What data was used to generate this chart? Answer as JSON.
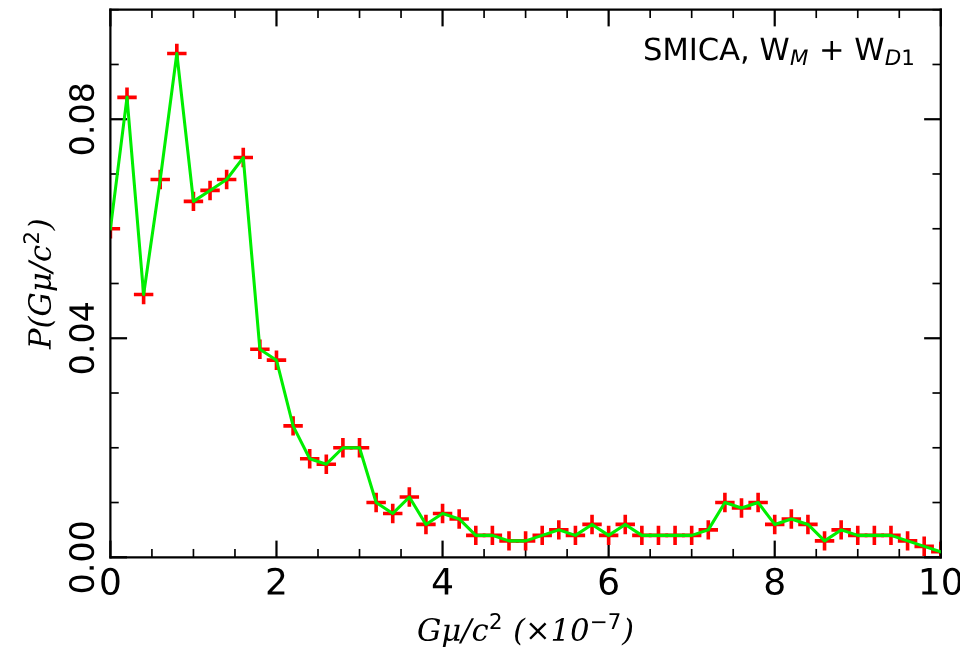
{
  "chart_data": {
    "type": "line",
    "xlabel": "Gμ/c$^{2}$ (×10$^{−7}$)",
    "ylabel": "P(Gμ/c$^{2}$)",
    "annotations": [
      "SMICA, W$_{M}$ + W$_{D1}$"
    ],
    "x": [
      0,
      0.2,
      0.4,
      0.6,
      0.8,
      1.0,
      1.2,
      1.4,
      1.6,
      1.8,
      2.0,
      2.2,
      2.4,
      2.6,
      2.8,
      3.0,
      3.2,
      3.4,
      3.6,
      3.8,
      4.0,
      4.2,
      4.4,
      4.6,
      4.8,
      5.0,
      5.2,
      5.4,
      5.6,
      5.8,
      6.0,
      6.2,
      6.4,
      6.6,
      6.8,
      7.0,
      7.2,
      7.4,
      7.6,
      7.8,
      8.0,
      8.2,
      8.4,
      8.6,
      8.8,
      9.0,
      9.2,
      9.4,
      9.6,
      9.8,
      10.0
    ],
    "series": [
      {
        "color": "#00ee00",
        "marker": "none",
        "values": [
          0.06,
          0.084,
          0.048,
          0.069,
          0.092,
          0.065,
          0.067,
          0.069,
          0.073,
          0.038,
          0.036,
          0.024,
          0.018,
          0.017,
          0.02,
          0.02,
          0.01,
          0.008,
          0.011,
          0.006,
          0.008,
          0.007,
          0.004,
          0.004,
          0.003,
          0.003,
          0.004,
          0.005,
          0.004,
          0.006,
          0.004,
          0.006,
          0.004,
          0.004,
          0.004,
          0.004,
          0.005,
          0.01,
          0.009,
          0.01,
          0.006,
          0.007,
          0.006,
          0.003,
          0.005,
          0.004,
          0.004,
          0.004,
          0.003,
          0.002,
          0.001
        ]
      },
      {
        "type": "scatter",
        "color": "#ff0000",
        "marker": "cross",
        "values": [
          0.06,
          0.084,
          0.048,
          0.069,
          0.092,
          0.065,
          0.067,
          0.069,
          0.073,
          0.038,
          0.036,
          0.024,
          0.018,
          0.017,
          0.02,
          0.02,
          0.01,
          0.008,
          0.011,
          0.006,
          0.008,
          0.007,
          0.004,
          0.004,
          0.003,
          0.003,
          0.004,
          0.005,
          0.004,
          0.006,
          0.004,
          0.006,
          0.004,
          0.004,
          0.004,
          0.004,
          0.005,
          0.01,
          0.009,
          0.01,
          0.006,
          0.007,
          0.006,
          0.003,
          0.005,
          0.004,
          0.004,
          0.004,
          0.003,
          0.002,
          0.001
        ]
      }
    ],
    "line_style": "solid",
    "xlim": [
      0,
      10
    ],
    "xticks": [
      0,
      2,
      4,
      6,
      8,
      10
    ],
    "ylim": [
      0,
      0.1
    ],
    "yticks": [
      {
        "value": 0,
        "label": "0.00"
      },
      {
        "value": 0.04,
        "label": "0.04"
      },
      {
        "value": 0.08,
        "label": "0.08"
      }
    ],
    "grid": false,
    "legend": false
  }
}
